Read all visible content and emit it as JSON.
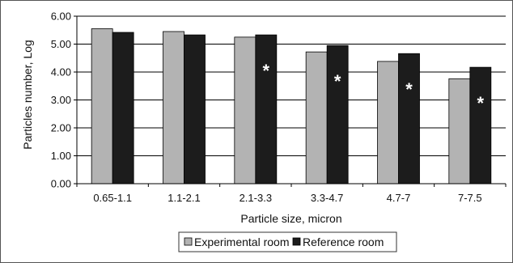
{
  "chart_data": {
    "type": "bar",
    "xlabel": "Particle size, micron",
    "ylabel": "Particles number, Log",
    "ylim": [
      0,
      6
    ],
    "ytick_step": 1,
    "ytick_labels": [
      "0.00",
      "1.00",
      "2.00",
      "3.00",
      "4.00",
      "5.00",
      "6.00"
    ],
    "categories": [
      "0.65-1.1",
      "1.1-2.1",
      "2.1-3.3",
      "3.3-4.7",
      "4.7-7",
      "7-7.5"
    ],
    "series": [
      {
        "name": "Experimental room",
        "color": "#b3b3b3",
        "values": [
          5.55,
          5.45,
          5.25,
          4.72,
          4.38,
          3.76
        ]
      },
      {
        "name": "Reference room",
        "color": "#1c1c1c",
        "values": [
          5.42,
          5.33,
          5.33,
          4.95,
          4.66,
          4.17
        ]
      }
    ],
    "annotations": [
      {
        "text": "*",
        "category": "2.1-3.3",
        "series": "Reference room"
      },
      {
        "text": "*",
        "category": "3.3-4.7",
        "series": "Reference room"
      },
      {
        "text": "*",
        "category": "4.7-7",
        "series": "Reference room"
      },
      {
        "text": "*",
        "category": "7-7.5",
        "series": "Reference room"
      }
    ],
    "grid": true,
    "legend_position": "bottom"
  }
}
